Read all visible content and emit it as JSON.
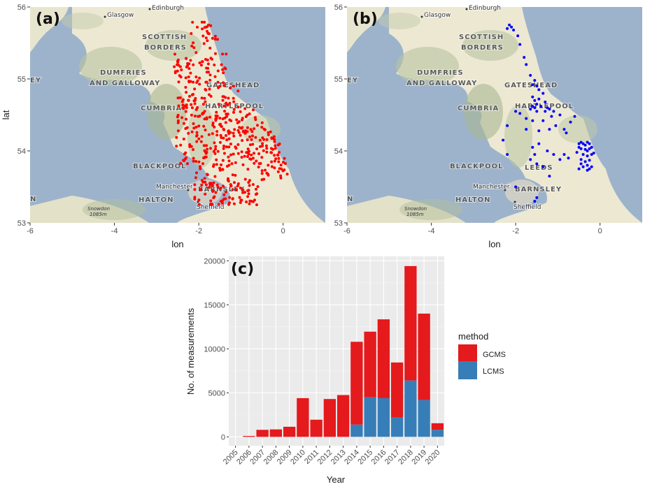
{
  "chart_data": [
    {
      "type": "scatter",
      "panel": "(a)",
      "xlabel": "lon",
      "ylabel": "lat",
      "xlim": [
        -6,
        1
      ],
      "ylim": [
        53,
        56
      ],
      "x_ticks": [
        "-6",
        "-4",
        "-2",
        "0"
      ],
      "y_ticks": [
        "53",
        "54",
        "55",
        "56"
      ],
      "point_color": "#ff0000",
      "region": {
        "lon": [
          -2.6,
          0.1
        ],
        "lat": [
          53.25,
          55.8
        ]
      },
      "labels": {
        "glasgow": "Glasgow",
        "edinburgh": "Edinburgh",
        "scottish": "SCOTTISH",
        "borders": "BORDERS",
        "dumfries": "DUMFRIES",
        "galloway": "AND GALLOWAY",
        "gateshead": "GATESHEAD",
        "hartlepool": "HARTLEPOOL",
        "cumbria": "CUMBRIA",
        "blackpool": "BLACKPOOL",
        "manchester": "Manchester",
        "barnsley": "BARNSLEY",
        "halton": "HALTON",
        "sheffield": "Sheffield",
        "snowdon": "Snowdon",
        "snowdon_height": "1085m",
        "edge_ey": "EY",
        "edge_n": "N",
        "leeds": "LEEDS"
      }
    },
    {
      "type": "scatter",
      "panel": "(b)",
      "xlabel": "lon",
      "ylabel": "",
      "xlim": [
        -6,
        1
      ],
      "ylim": [
        53,
        56
      ],
      "x_ticks": [
        "-6",
        "-4",
        "-2",
        "0"
      ],
      "y_ticks": [
        "53",
        "54",
        "55",
        "56"
      ],
      "point_color": "#0000ff",
      "points": [
        [
          -2.15,
          55.75
        ],
        [
          -2.1,
          55.72
        ],
        [
          -2.2,
          55.7
        ],
        [
          -2.05,
          55.68
        ],
        [
          -1.95,
          55.6
        ],
        [
          -1.9,
          55.48
        ],
        [
          -1.8,
          55.3
        ],
        [
          -1.75,
          55.2
        ],
        [
          -1.65,
          55.05
        ],
        [
          -1.6,
          54.92
        ],
        [
          -1.55,
          54.98
        ],
        [
          -1.5,
          54.9
        ],
        [
          -1.45,
          54.85
        ],
        [
          -1.6,
          54.75
        ],
        [
          -1.55,
          54.7
        ],
        [
          -1.45,
          54.72
        ],
        [
          -1.35,
          54.8
        ],
        [
          -1.3,
          54.68
        ],
        [
          -1.5,
          54.65
        ],
        [
          -1.55,
          54.6
        ],
        [
          -1.6,
          54.62
        ],
        [
          -1.65,
          54.58
        ],
        [
          -1.4,
          54.62
        ],
        [
          -1.25,
          54.6
        ],
        [
          -1.5,
          54.55
        ],
        [
          -1.3,
          54.55
        ],
        [
          -1.2,
          54.58
        ],
        [
          -1.1,
          54.55
        ],
        [
          -1.9,
          54.52
        ],
        [
          -2.0,
          54.55
        ],
        [
          -1.75,
          54.45
        ],
        [
          -1.6,
          54.42
        ],
        [
          -1.35,
          54.42
        ],
        [
          -1.15,
          54.48
        ],
        [
          -0.95,
          54.5
        ],
        [
          -0.6,
          54.48
        ],
        [
          -0.7,
          54.4
        ],
        [
          -0.85,
          54.3
        ],
        [
          -1.05,
          54.35
        ],
        [
          -1.2,
          54.3
        ],
        [
          -1.45,
          54.28
        ],
        [
          -1.75,
          54.3
        ],
        [
          -2.2,
          54.35
        ],
        [
          -2.3,
          54.15
        ],
        [
          -2.2,
          53.95
        ],
        [
          -1.6,
          54.05
        ],
        [
          -1.45,
          54.1
        ],
        [
          -1.25,
          54.0
        ],
        [
          -1.1,
          53.95
        ],
        [
          -0.95,
          53.88
        ],
        [
          -0.85,
          53.95
        ],
        [
          -0.75,
          53.9
        ],
        [
          -1.55,
          53.95
        ],
        [
          -1.65,
          53.88
        ],
        [
          -1.5,
          53.82
        ],
        [
          -1.35,
          53.78
        ],
        [
          -0.8,
          54.25
        ],
        [
          -0.5,
          54.1
        ],
        [
          -0.45,
          54.12
        ],
        [
          -0.4,
          54.1
        ],
        [
          -0.35,
          54.08
        ],
        [
          -0.3,
          54.12
        ],
        [
          -0.25,
          54.1
        ],
        [
          -0.5,
          54.05
        ],
        [
          -0.45,
          54.03
        ],
        [
          -0.35,
          54.02
        ],
        [
          -0.3,
          54.0
        ],
        [
          -0.25,
          54.03
        ],
        [
          -0.2,
          54.05
        ],
        [
          -0.55,
          53.98
        ],
        [
          -0.4,
          53.95
        ],
        [
          -0.3,
          53.93
        ],
        [
          -0.2,
          53.95
        ],
        [
          -0.15,
          53.97
        ],
        [
          -0.45,
          53.88
        ],
        [
          -0.35,
          53.85
        ],
        [
          -0.25,
          53.87
        ],
        [
          -0.3,
          53.8
        ],
        [
          -0.4,
          53.78
        ],
        [
          -0.2,
          53.78
        ],
        [
          -0.5,
          53.75
        ],
        [
          -0.3,
          53.73
        ],
        [
          -0.25,
          53.75
        ],
        [
          -0.45,
          53.82
        ],
        [
          -1.5,
          53.35
        ],
        [
          -1.2,
          53.65
        ],
        [
          -1.55,
          53.3
        ],
        [
          -2.0,
          53.5
        ]
      ]
    },
    {
      "type": "bar",
      "panel": "(c)",
      "stacked": true,
      "title": "",
      "xlabel": "Year",
      "ylabel": "No. of measurements",
      "ylim": [
        0,
        20000
      ],
      "y_ticks": [
        "0",
        "5000",
        "10000",
        "15000",
        "20000"
      ],
      "categories": [
        "2005",
        "2006",
        "2007",
        "2008",
        "2009",
        "2010",
        "2011",
        "2012",
        "2013",
        "2014",
        "2015",
        "2016",
        "2017",
        "2018",
        "2019",
        "2020"
      ],
      "series": [
        {
          "name": "LCMS",
          "color": "#377eb8",
          "values": [
            0,
            0,
            0,
            0,
            0,
            0,
            0,
            0,
            0,
            1400,
            4500,
            4400,
            2200,
            6400,
            4200,
            800
          ]
        },
        {
          "name": "GCMS",
          "color": "#e41a1c",
          "values": [
            0,
            100,
            800,
            850,
            1150,
            4400,
            1950,
            4300,
            4750,
            9400,
            7450,
            8950,
            6250,
            13000,
            9800,
            750
          ]
        }
      ],
      "legend": {
        "title": "method",
        "position": "right",
        "entries": [
          "GCMS",
          "LCMS"
        ]
      }
    }
  ]
}
